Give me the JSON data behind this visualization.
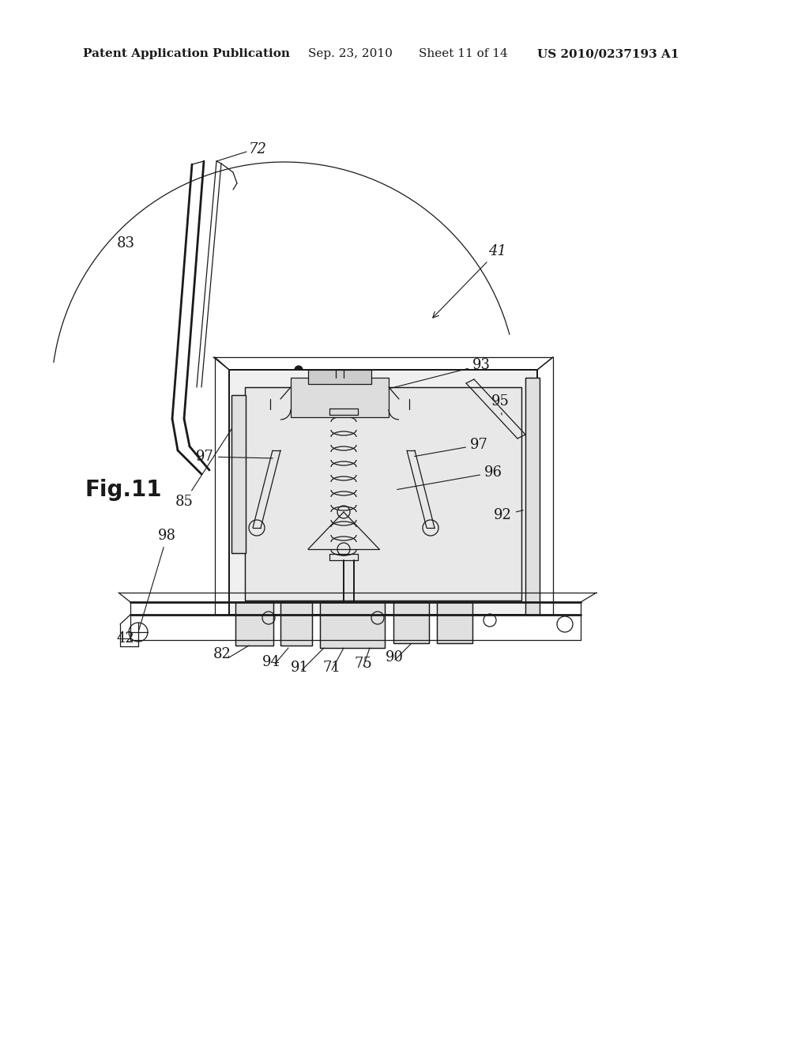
{
  "background_color": "#ffffff",
  "header_text": "Patent Application Publication",
  "header_date": "Sep. 23, 2010",
  "header_sheet": "Sheet 11 of 14",
  "header_patent": "US 2010/0237193 A1",
  "fig_label": "Fig.11",
  "title_fontsize": 11,
  "label_fontsize": 13,
  "fig_label_fontsize": 20
}
